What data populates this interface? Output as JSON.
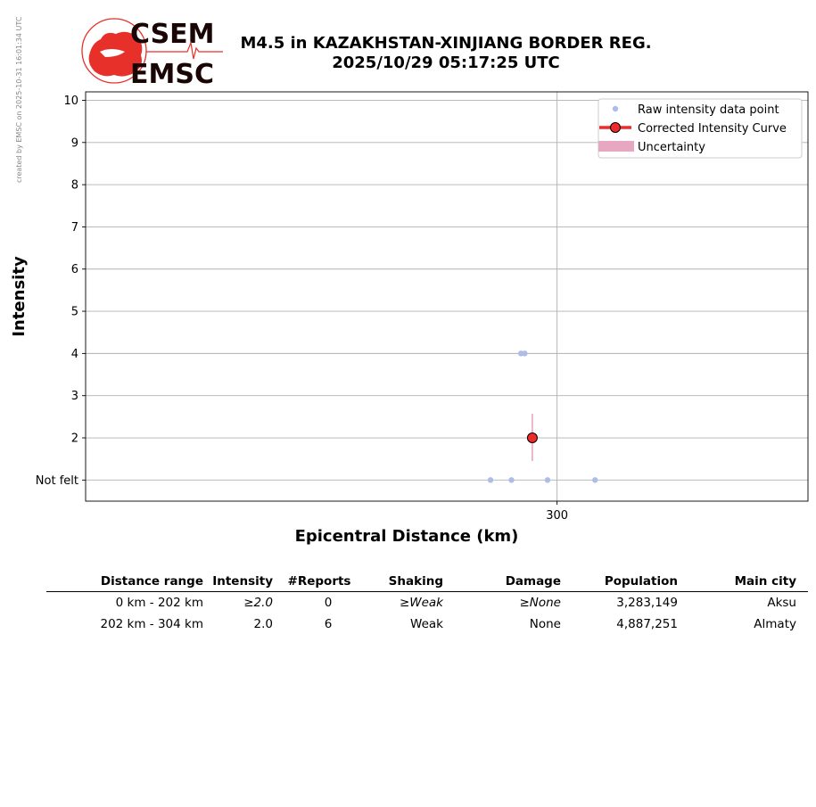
{
  "credit": "created by EMSC on 2025-10-31 16:01:34 UTC",
  "logo": {
    "top_text": "CSEM",
    "bottom_text": "EMSC"
  },
  "title": {
    "line1": "M4.5 in KAZAKHSTAN-XINJIANG BORDER REG.",
    "line2": "2025/10/29 05:17:25 UTC"
  },
  "chart_data": {
    "type": "scatter",
    "xlabel": "Epicentral Distance (km)",
    "ylabel": "Intensity",
    "xlim": [
      52,
      432
    ],
    "ylim": [
      0.5,
      10.2
    ],
    "x_ticks": [
      300
    ],
    "y_ticks": [
      {
        "value": 1,
        "label": "Not felt"
      },
      {
        "value": 2,
        "label": "2"
      },
      {
        "value": 3,
        "label": "3"
      },
      {
        "value": 4,
        "label": "4"
      },
      {
        "value": 5,
        "label": "5"
      },
      {
        "value": 6,
        "label": "6"
      },
      {
        "value": 7,
        "label": "7"
      },
      {
        "value": 8,
        "label": "8"
      },
      {
        "value": 9,
        "label": "9"
      },
      {
        "value": 10,
        "label": "10"
      }
    ],
    "grid": true,
    "legend_position": "top-right",
    "series": [
      {
        "name": "Raw intensity data point",
        "color": "#aebde8",
        "points": [
          {
            "x": 281,
            "y": 4
          },
          {
            "x": 283,
            "y": 4
          },
          {
            "x": 265,
            "y": 1
          },
          {
            "x": 276,
            "y": 1
          },
          {
            "x": 295,
            "y": 1
          },
          {
            "x": 320,
            "y": 1
          }
        ]
      },
      {
        "name": "Corrected Intensity Curve",
        "color": "#ee2a2a",
        "points": [
          {
            "x": 287,
            "y": 2.0
          }
        ]
      },
      {
        "name": "Uncertainty",
        "color": "#e8a7c1",
        "intervals": [
          {
            "x": 287,
            "low": 1.45,
            "high": 2.57
          }
        ]
      }
    ]
  },
  "table": {
    "headers": [
      "Distance range",
      "Intensity",
      "#Reports",
      "Shaking",
      "Damage",
      "Population",
      "Main city"
    ],
    "rows": [
      {
        "distance": "0 km -  202 km",
        "intensity": "2.0",
        "intensity_prefix": "≥",
        "reports": "0",
        "shaking": "Weak",
        "shaking_prefix": "≥",
        "damage": "None",
        "damage_prefix": "≥",
        "population": "3,283,149",
        "city": "Aksu"
      },
      {
        "distance": "202 km -  304 km",
        "intensity": "2.0",
        "intensity_prefix": "",
        "reports": "6",
        "shaking": "Weak",
        "shaking_prefix": "",
        "damage": "None",
        "damage_prefix": "",
        "population": "4,887,251",
        "city": "Almaty"
      }
    ]
  }
}
